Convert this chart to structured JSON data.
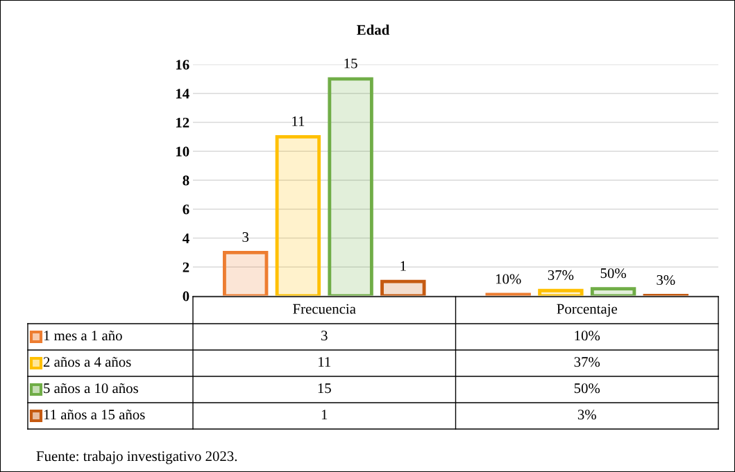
{
  "chart_data": {
    "type": "bar",
    "title": "Edad",
    "categories": [
      "Frecuencia",
      "Porcentaje"
    ],
    "series": [
      {
        "name": "1 mes a 1 año",
        "color": "#ed7d31",
        "values": [
          3,
          0.1
        ],
        "value_labels": [
          "3",
          "10%"
        ]
      },
      {
        "name": "2 años a 4 años",
        "color": "#ffc000",
        "values": [
          11,
          0.37
        ],
        "value_labels": [
          "11",
          "37%"
        ]
      },
      {
        "name": "5 años a 10 años",
        "color": "#70ad47",
        "values": [
          15,
          0.5
        ],
        "value_labels": [
          "15",
          "50%"
        ]
      },
      {
        "name": "11 años a 15 años",
        "color": "#c55a11",
        "values": [
          1,
          0.03
        ],
        "value_labels": [
          "1",
          "3%"
        ]
      }
    ],
    "ylim": [
      0,
      16
    ],
    "yticks": [
      0,
      2,
      4,
      6,
      8,
      10,
      12,
      14,
      16
    ],
    "grid": "y",
    "legend": "bottom",
    "tick_labels": "y",
    "annotations": [
      "Fuente: trabajo investigativo 2023."
    ]
  }
}
